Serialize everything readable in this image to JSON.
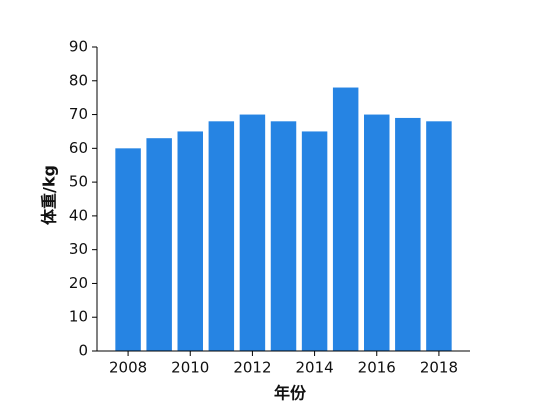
{
  "chart_data": {
    "type": "bar",
    "x_label": "年份",
    "y_label": "体重/kg",
    "x": [
      2008,
      2009,
      2010,
      2011,
      2012,
      2013,
      2014,
      2015,
      2016,
      2017,
      2018
    ],
    "values": [
      60,
      63,
      65,
      68,
      70,
      68,
      65,
      78,
      70,
      69,
      68
    ],
    "color": "#2684e3",
    "xlim": [
      2007,
      2019
    ],
    "xticks": [
      2008,
      2010,
      2012,
      2014,
      2016,
      2018
    ],
    "ylim": [
      0,
      90
    ],
    "yticks": [
      0,
      10,
      20,
      30,
      40,
      50,
      60,
      70,
      80,
      90
    ],
    "grid": false
  }
}
